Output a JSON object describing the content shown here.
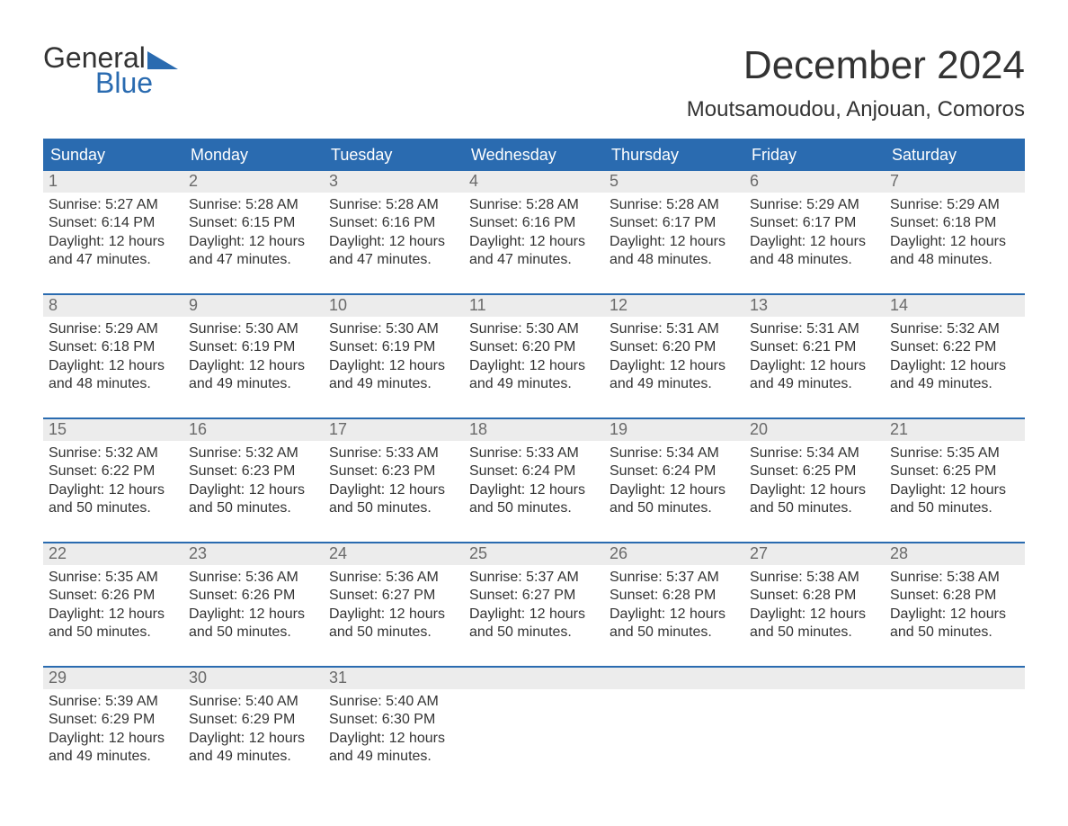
{
  "logo": {
    "line1": "General",
    "line2": "Blue"
  },
  "title": {
    "month": "December 2024",
    "location": "Moutsamoudou, Anjouan, Comoros"
  },
  "style": {
    "accent_color": "#2a6bb0",
    "header_bg": "#2a6bb0",
    "header_text_color": "#ffffff",
    "daynum_bg": "#ececec",
    "daynum_color": "#6a6a6a",
    "body_text_color": "#333333",
    "background_color": "#ffffff",
    "title_fontsize_pt": 33,
    "location_fontsize_pt": 18,
    "dayheader_fontsize_pt": 14,
    "cell_fontsize_pt": 12,
    "columns": 7,
    "rows": 5
  },
  "day_headers": [
    "Sunday",
    "Monday",
    "Tuesday",
    "Wednesday",
    "Thursday",
    "Friday",
    "Saturday"
  ],
  "weeks": [
    [
      {
        "n": "1",
        "sr": "Sunrise: 5:27 AM",
        "ss": "Sunset: 6:14 PM",
        "d1": "Daylight: 12 hours",
        "d2": "and 47 minutes."
      },
      {
        "n": "2",
        "sr": "Sunrise: 5:28 AM",
        "ss": "Sunset: 6:15 PM",
        "d1": "Daylight: 12 hours",
        "d2": "and 47 minutes."
      },
      {
        "n": "3",
        "sr": "Sunrise: 5:28 AM",
        "ss": "Sunset: 6:16 PM",
        "d1": "Daylight: 12 hours",
        "d2": "and 47 minutes."
      },
      {
        "n": "4",
        "sr": "Sunrise: 5:28 AM",
        "ss": "Sunset: 6:16 PM",
        "d1": "Daylight: 12 hours",
        "d2": "and 47 minutes."
      },
      {
        "n": "5",
        "sr": "Sunrise: 5:28 AM",
        "ss": "Sunset: 6:17 PM",
        "d1": "Daylight: 12 hours",
        "d2": "and 48 minutes."
      },
      {
        "n": "6",
        "sr": "Sunrise: 5:29 AM",
        "ss": "Sunset: 6:17 PM",
        "d1": "Daylight: 12 hours",
        "d2": "and 48 minutes."
      },
      {
        "n": "7",
        "sr": "Sunrise: 5:29 AM",
        "ss": "Sunset: 6:18 PM",
        "d1": "Daylight: 12 hours",
        "d2": "and 48 minutes."
      }
    ],
    [
      {
        "n": "8",
        "sr": "Sunrise: 5:29 AM",
        "ss": "Sunset: 6:18 PM",
        "d1": "Daylight: 12 hours",
        "d2": "and 48 minutes."
      },
      {
        "n": "9",
        "sr": "Sunrise: 5:30 AM",
        "ss": "Sunset: 6:19 PM",
        "d1": "Daylight: 12 hours",
        "d2": "and 49 minutes."
      },
      {
        "n": "10",
        "sr": "Sunrise: 5:30 AM",
        "ss": "Sunset: 6:19 PM",
        "d1": "Daylight: 12 hours",
        "d2": "and 49 minutes."
      },
      {
        "n": "11",
        "sr": "Sunrise: 5:30 AM",
        "ss": "Sunset: 6:20 PM",
        "d1": "Daylight: 12 hours",
        "d2": "and 49 minutes."
      },
      {
        "n": "12",
        "sr": "Sunrise: 5:31 AM",
        "ss": "Sunset: 6:20 PM",
        "d1": "Daylight: 12 hours",
        "d2": "and 49 minutes."
      },
      {
        "n": "13",
        "sr": "Sunrise: 5:31 AM",
        "ss": "Sunset: 6:21 PM",
        "d1": "Daylight: 12 hours",
        "d2": "and 49 minutes."
      },
      {
        "n": "14",
        "sr": "Sunrise: 5:32 AM",
        "ss": "Sunset: 6:22 PM",
        "d1": "Daylight: 12 hours",
        "d2": "and 49 minutes."
      }
    ],
    [
      {
        "n": "15",
        "sr": "Sunrise: 5:32 AM",
        "ss": "Sunset: 6:22 PM",
        "d1": "Daylight: 12 hours",
        "d2": "and 50 minutes."
      },
      {
        "n": "16",
        "sr": "Sunrise: 5:32 AM",
        "ss": "Sunset: 6:23 PM",
        "d1": "Daylight: 12 hours",
        "d2": "and 50 minutes."
      },
      {
        "n": "17",
        "sr": "Sunrise: 5:33 AM",
        "ss": "Sunset: 6:23 PM",
        "d1": "Daylight: 12 hours",
        "d2": "and 50 minutes."
      },
      {
        "n": "18",
        "sr": "Sunrise: 5:33 AM",
        "ss": "Sunset: 6:24 PM",
        "d1": "Daylight: 12 hours",
        "d2": "and 50 minutes."
      },
      {
        "n": "19",
        "sr": "Sunrise: 5:34 AM",
        "ss": "Sunset: 6:24 PM",
        "d1": "Daylight: 12 hours",
        "d2": "and 50 minutes."
      },
      {
        "n": "20",
        "sr": "Sunrise: 5:34 AM",
        "ss": "Sunset: 6:25 PM",
        "d1": "Daylight: 12 hours",
        "d2": "and 50 minutes."
      },
      {
        "n": "21",
        "sr": "Sunrise: 5:35 AM",
        "ss": "Sunset: 6:25 PM",
        "d1": "Daylight: 12 hours",
        "d2": "and 50 minutes."
      }
    ],
    [
      {
        "n": "22",
        "sr": "Sunrise: 5:35 AM",
        "ss": "Sunset: 6:26 PM",
        "d1": "Daylight: 12 hours",
        "d2": "and 50 minutes."
      },
      {
        "n": "23",
        "sr": "Sunrise: 5:36 AM",
        "ss": "Sunset: 6:26 PM",
        "d1": "Daylight: 12 hours",
        "d2": "and 50 minutes."
      },
      {
        "n": "24",
        "sr": "Sunrise: 5:36 AM",
        "ss": "Sunset: 6:27 PM",
        "d1": "Daylight: 12 hours",
        "d2": "and 50 minutes."
      },
      {
        "n": "25",
        "sr": "Sunrise: 5:37 AM",
        "ss": "Sunset: 6:27 PM",
        "d1": "Daylight: 12 hours",
        "d2": "and 50 minutes."
      },
      {
        "n": "26",
        "sr": "Sunrise: 5:37 AM",
        "ss": "Sunset: 6:28 PM",
        "d1": "Daylight: 12 hours",
        "d2": "and 50 minutes."
      },
      {
        "n": "27",
        "sr": "Sunrise: 5:38 AM",
        "ss": "Sunset: 6:28 PM",
        "d1": "Daylight: 12 hours",
        "d2": "and 50 minutes."
      },
      {
        "n": "28",
        "sr": "Sunrise: 5:38 AM",
        "ss": "Sunset: 6:28 PM",
        "d1": "Daylight: 12 hours",
        "d2": "and 50 minutes."
      }
    ],
    [
      {
        "n": "29",
        "sr": "Sunrise: 5:39 AM",
        "ss": "Sunset: 6:29 PM",
        "d1": "Daylight: 12 hours",
        "d2": "and 49 minutes."
      },
      {
        "n": "30",
        "sr": "Sunrise: 5:40 AM",
        "ss": "Sunset: 6:29 PM",
        "d1": "Daylight: 12 hours",
        "d2": "and 49 minutes."
      },
      {
        "n": "31",
        "sr": "Sunrise: 5:40 AM",
        "ss": "Sunset: 6:30 PM",
        "d1": "Daylight: 12 hours",
        "d2": "and 49 minutes."
      },
      {
        "n": "",
        "sr": "",
        "ss": "",
        "d1": "",
        "d2": "",
        "empty": true
      },
      {
        "n": "",
        "sr": "",
        "ss": "",
        "d1": "",
        "d2": "",
        "empty": true
      },
      {
        "n": "",
        "sr": "",
        "ss": "",
        "d1": "",
        "d2": "",
        "empty": true
      },
      {
        "n": "",
        "sr": "",
        "ss": "",
        "d1": "",
        "d2": "",
        "empty": true
      }
    ]
  ]
}
